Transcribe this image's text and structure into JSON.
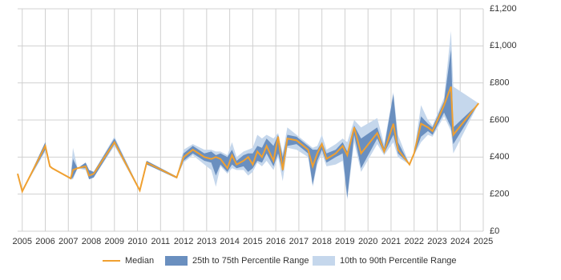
{
  "chart_data": {
    "type": "line",
    "x": [
      2004.8,
      2005.0,
      2006.0,
      2006.2,
      2006.3,
      2007.1,
      2007.2,
      2007.4,
      2007.75,
      2007.9,
      2008.1,
      2009.0,
      2010.1,
      2010.4,
      2011.7,
      2012.0,
      2012.4,
      2012.9,
      2013.2,
      2013.4,
      2013.6,
      2013.9,
      2014.1,
      2014.3,
      2014.6,
      2014.8,
      2015.0,
      2015.2,
      2015.4,
      2015.6,
      2015.9,
      2016.1,
      2016.3,
      2016.5,
      2016.9,
      2017.4,
      2017.6,
      2017.8,
      2018.0,
      2018.2,
      2018.6,
      2018.9,
      2019.1,
      2019.4,
      2019.7,
      2020.4,
      2020.7,
      2021.1,
      2021.3,
      2021.8,
      2022.0,
      2022.3,
      2022.6,
      2022.8,
      2023.3,
      2023.6,
      2023.7,
      2024.8
    ],
    "series": [
      {
        "name": "Median",
        "color": "#f0a030",
        "values": [
          310,
          215,
          460,
          350,
          340,
          285,
          330,
          340,
          350,
          300,
          310,
          480,
          220,
          370,
          290,
          400,
          440,
          400,
          390,
          400,
          390,
          340,
          410,
          360,
          380,
          400,
          360,
          430,
          400,
          460,
          380,
          510,
          330,
          500,
          490,
          440,
          350,
          420,
          470,
          390,
          420,
          460,
          410,
          560,
          420,
          530,
          430,
          580,
          440,
          360,
          420,
          580,
          560,
          540,
          680,
          780,
          520,
          690
        ]
      },
      {
        "name": "25th to 75th Percentile Range",
        "color": "#6a8fbf",
        "lower": [
          310,
          215,
          440,
          350,
          340,
          280,
          290,
          340,
          340,
          280,
          290,
          470,
          215,
          360,
          285,
          380,
          420,
          380,
          370,
          300,
          360,
          320,
          360,
          340,
          350,
          320,
          340,
          380,
          370,
          420,
          350,
          420,
          320,
          460,
          470,
          420,
          250,
          380,
          440,
          370,
          400,
          420,
          180,
          520,
          340,
          500,
          420,
          520,
          420,
          360,
          410,
          510,
          540,
          520,
          640,
          560,
          470,
          690
        ],
        "upper": [
          310,
          215,
          480,
          350,
          340,
          290,
          390,
          340,
          370,
          330,
          320,
          500,
          225,
          380,
          295,
          420,
          460,
          420,
          430,
          410,
          420,
          400,
          440,
          380,
          410,
          420,
          420,
          460,
          450,
          500,
          460,
          520,
          400,
          520,
          510,
          460,
          440,
          440,
          480,
          420,
          440,
          480,
          430,
          570,
          500,
          560,
          450,
          740,
          480,
          360,
          430,
          620,
          580,
          560,
          700,
          980,
          560,
          690
        ]
      },
      {
        "name": "10th to 90th Percentile Range",
        "color": "#c5d7ec",
        "lower": [
          310,
          215,
          430,
          350,
          340,
          280,
          280,
          340,
          330,
          280,
          290,
          460,
          215,
          360,
          285,
          370,
          410,
          360,
          330,
          240,
          350,
          310,
          340,
          330,
          330,
          300,
          320,
          370,
          350,
          380,
          330,
          400,
          270,
          450,
          440,
          400,
          240,
          360,
          420,
          350,
          360,
          380,
          170,
          480,
          320,
          470,
          410,
          480,
          400,
          360,
          410,
          480,
          520,
          510,
          620,
          540,
          420,
          690
        ],
        "upper": [
          310,
          215,
          480,
          350,
          340,
          290,
          450,
          340,
          370,
          330,
          320,
          510,
          225,
          380,
          295,
          440,
          470,
          440,
          440,
          430,
          430,
          410,
          480,
          400,
          430,
          440,
          450,
          520,
          500,
          520,
          500,
          530,
          420,
          560,
          520,
          470,
          450,
          460,
          520,
          440,
          470,
          500,
          480,
          600,
          560,
          610,
          470,
          750,
          520,
          360,
          430,
          680,
          600,
          570,
          720,
          1080,
          780,
          690
        ]
      }
    ],
    "xlim": [
      2004.8,
      2025
    ],
    "xticks": [
      2005,
      2006,
      2007,
      2008,
      2009,
      2010,
      2011,
      2012,
      2013,
      2014,
      2015,
      2016,
      2017,
      2018,
      2019,
      2020,
      2021,
      2022,
      2023,
      2024,
      2025
    ],
    "ylim": [
      0,
      1200
    ],
    "yticks": [
      {
        "value": 0,
        "label": "£0"
      },
      {
        "value": 200,
        "label": "£200"
      },
      {
        "value": 400,
        "label": "£400"
      },
      {
        "value": 600,
        "label": "£600"
      },
      {
        "value": 800,
        "label": "£800"
      },
      {
        "value": 1000,
        "label": "£1,000"
      },
      {
        "value": 1200,
        "label": "£1,200"
      }
    ],
    "grid": true
  }
}
